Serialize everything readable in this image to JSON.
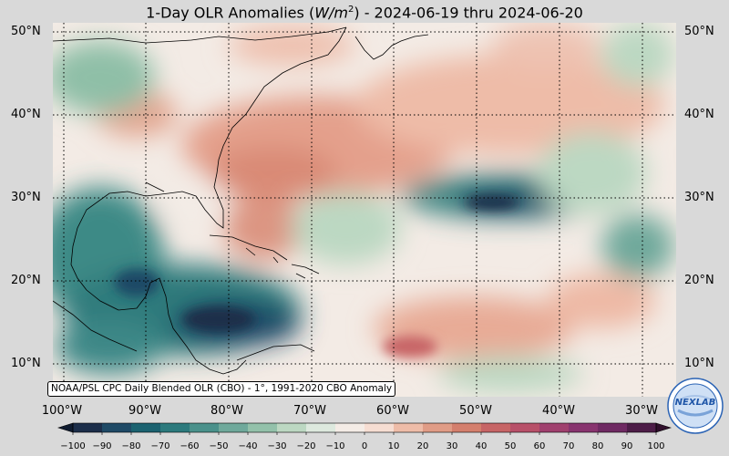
{
  "title": {
    "prefix": "1-Day OLR Anomalies (",
    "unit_base": "W/m",
    "unit_exp": "2",
    "suffix": ") - 2024-06-19 thru 2024-06-20"
  },
  "map": {
    "domain": {
      "lon_min": -100,
      "lon_max": -25,
      "lat_min": 5,
      "lat_max": 51
    },
    "lat_labels": [
      "10°N",
      "20°N",
      "30°N",
      "40°N",
      "50°N"
    ],
    "lon_labels": [
      "100°W",
      "90°W",
      "80°W",
      "70°W",
      "60°W",
      "50°W",
      "40°W",
      "30°W"
    ],
    "source_note": "NOAA/PSL CPC Daily Blended OLR (CBO) - 1°, 1991-2020 CBO Anomaly",
    "anomaly_regions": [
      {
        "label": "US East Coast / W Atlantic positive",
        "lon": -68,
        "lat": 36,
        "value": 35
      },
      {
        "label": "Bahamas positive",
        "lon": -76,
        "lat": 25,
        "value": 25
      },
      {
        "label": "Caribbean / Central America negative",
        "lon": -78,
        "lat": 15,
        "value": -70
      },
      {
        "label": "Gulf of Mexico negative",
        "lon": -95,
        "lat": 25,
        "value": -55
      },
      {
        "label": "Central Atlantic band negative",
        "lon": -45,
        "lat": 30,
        "value": -65
      },
      {
        "label": "Tropical Atlantic positive",
        "lon": -45,
        "lat": 15,
        "value": 30
      },
      {
        "label": "Northeast Atlantic positive",
        "lon": -40,
        "lat": 46,
        "value": 15
      }
    ]
  },
  "colorbar": {
    "ticks": [
      "−100",
      "−90",
      "−80",
      "−70",
      "−60",
      "−50",
      "−40",
      "−30",
      "−20",
      "−10",
      "0",
      "10",
      "20",
      "30",
      "40",
      "50",
      "60",
      "70",
      "80",
      "90",
      "100"
    ],
    "colors": [
      "#1c2e4a",
      "#1f4a66",
      "#1b6270",
      "#2c7a7d",
      "#4a918b",
      "#6fa99b",
      "#93c1aa",
      "#bcd8c2",
      "#dde9de",
      "#f4ece6",
      "#f6ddd2",
      "#eebca8",
      "#e09c86",
      "#d47f6d",
      "#c76566",
      "#b85069",
      "#a0406e",
      "#88346f",
      "#6f2a63",
      "#4d1d48"
    ]
  },
  "logo": {
    "text": "NEXLAB"
  }
}
